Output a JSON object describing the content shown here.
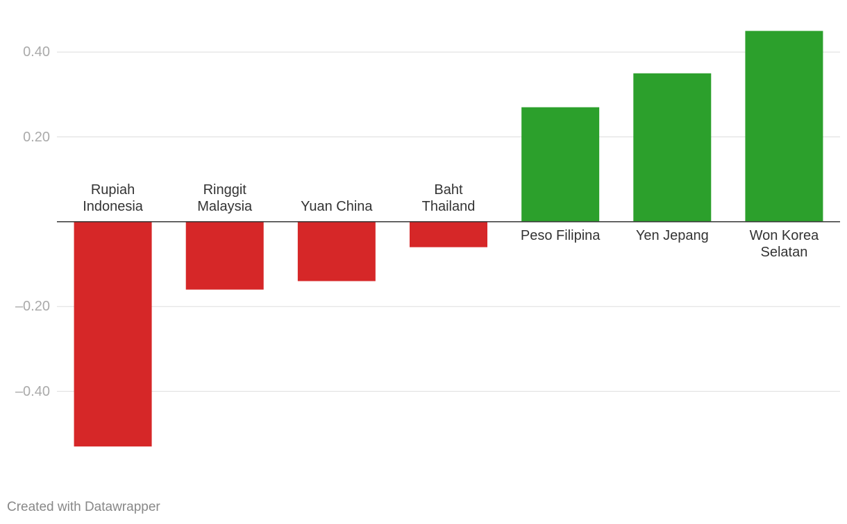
{
  "chart_data": {
    "type": "bar",
    "categories": [
      "Rupiah\nIndonesia",
      "Ringgit\nMalaysia",
      "Yuan China",
      "Baht\nThailand",
      "Peso Filipina",
      "Yen Jepang",
      "Won Korea\nSelatan"
    ],
    "values": [
      -0.53,
      -0.16,
      -0.14,
      -0.06,
      0.27,
      0.35,
      0.45
    ],
    "color_negative": "#d62728",
    "color_positive": "#2ca02c",
    "ylim": [
      -0.6,
      0.5
    ],
    "yticks": [
      {
        "value": -0.4,
        "label": "–0.40"
      },
      {
        "value": -0.2,
        "label": "–0.20"
      },
      {
        "value": 0.2,
        "label": "0.20"
      },
      {
        "value": 0.4,
        "label": "0.40"
      }
    ],
    "grid": true,
    "credit": "Created with Datawrapper"
  }
}
